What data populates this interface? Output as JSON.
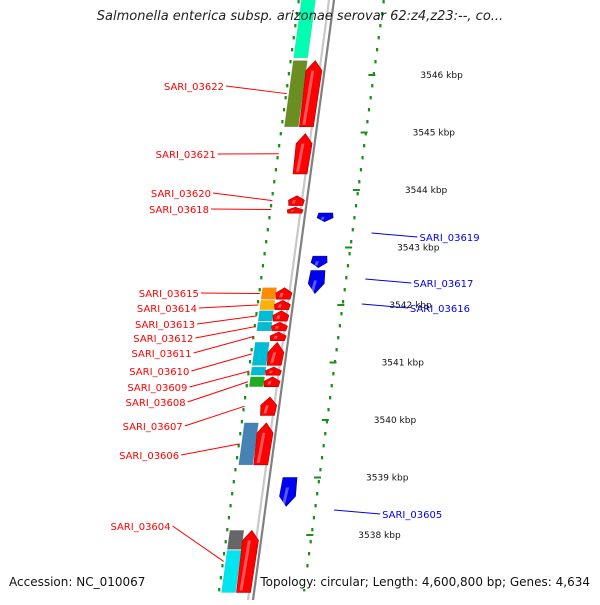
{
  "title": "Salmonella enterica subsp. arizonae serovar 62:z4,z23:--, co...",
  "accession": "Accession: NC_010067",
  "topology": "Topology: circular; Length: 4,600,800 bp; Genes: 4,634",
  "colors": {
    "forward_cds": "#ff0000",
    "reverse_cds": "#0000ee",
    "ticks": "#1a8f1a",
    "backbone": "#999999"
  },
  "axis": {
    "unit": "kbp",
    "ticks": [
      {
        "kbp": 3546,
        "label": "3546 kbp"
      },
      {
        "kbp": 3545,
        "label": "3545 kbp"
      },
      {
        "kbp": 3544,
        "label": "3544 kbp"
      },
      {
        "kbp": 3543,
        "label": "3543 kbp"
      },
      {
        "kbp": 3542,
        "label": "3542 kbp"
      },
      {
        "kbp": 3541,
        "label": "3541 kbp"
      },
      {
        "kbp": 3540,
        "label": "3540 kbp"
      },
      {
        "kbp": 3539,
        "label": "3539 kbp"
      },
      {
        "kbp": 3538,
        "label": "3538 kbp"
      }
    ]
  },
  "genes": [
    {
      "name": "SARI_03622",
      "strand": "+",
      "start_kbp": 3545.1,
      "end_kbp": 3546.25
    },
    {
      "name": "SARI_03621",
      "strand": "+",
      "start_kbp": 3544.28,
      "end_kbp": 3544.98
    },
    {
      "name": "SARI_03620",
      "strand": "+",
      "start_kbp": 3543.73,
      "end_kbp": 3543.9
    },
    {
      "name": "SARI_03618",
      "strand": "+",
      "start_kbp": 3543.62,
      "end_kbp": 3543.7
    },
    {
      "name": "SARI_03619",
      "strand": "-",
      "start_kbp": 3543.45,
      "end_kbp": 3543.6
    },
    {
      "name": "SARI_03617",
      "strand": "-",
      "start_kbp": 3542.65,
      "end_kbp": 3542.85
    },
    {
      "name": "SARI_03616",
      "strand": "-",
      "start_kbp": 3542.2,
      "end_kbp": 3542.6
    },
    {
      "name": "SARI_03615",
      "strand": "+",
      "start_kbp": 3542.1,
      "end_kbp": 3542.3
    },
    {
      "name": "SARI_03614",
      "strand": "+",
      "start_kbp": 3541.92,
      "end_kbp": 3542.08
    },
    {
      "name": "SARI_03613",
      "strand": "+",
      "start_kbp": 3541.72,
      "end_kbp": 3541.9
    },
    {
      "name": "SARI_03612",
      "strand": "+",
      "start_kbp": 3541.55,
      "end_kbp": 3541.7
    },
    {
      "name": "SARI_03611",
      "strand": "+",
      "start_kbp": 3541.38,
      "end_kbp": 3541.53
    },
    {
      "name": "SARI_03610",
      "strand": "+",
      "start_kbp": 3540.95,
      "end_kbp": 3541.35
    },
    {
      "name": "SARI_03609",
      "strand": "+",
      "start_kbp": 3540.78,
      "end_kbp": 3540.92
    },
    {
      "name": "SARI_03608",
      "strand": "+",
      "start_kbp": 3540.58,
      "end_kbp": 3540.75
    },
    {
      "name": "SARI_03607",
      "strand": "+",
      "start_kbp": 3540.08,
      "end_kbp": 3540.4
    },
    {
      "name": "SARI_03606",
      "strand": "+",
      "start_kbp": 3539.22,
      "end_kbp": 3539.95
    },
    {
      "name": "SARI_03605",
      "strand": "-",
      "start_kbp": 3538.5,
      "end_kbp": 3539.0
    },
    {
      "name": "SARI_03604",
      "strand": "+",
      "start_kbp": 3537.0,
      "end_kbp": 3538.08
    }
  ],
  "category_blocks": [
    {
      "color": "#00ffb0",
      "start_kbp": 3546.3,
      "end_kbp": 3547.4
    },
    {
      "color": "#6b8e23",
      "start_kbp": 3545.1,
      "end_kbp": 3546.25
    },
    {
      "color": "#ff8c00",
      "start_kbp": 3542.1,
      "end_kbp": 3542.3
    },
    {
      "color": "#ffb000",
      "start_kbp": 3541.92,
      "end_kbp": 3542.08
    },
    {
      "color": "#00bcd4",
      "start_kbp": 3541.72,
      "end_kbp": 3541.9
    },
    {
      "color": "#00bcd4",
      "start_kbp": 3541.55,
      "end_kbp": 3541.7
    },
    {
      "color": "#00bcd4",
      "start_kbp": 3540.95,
      "end_kbp": 3541.35
    },
    {
      "color": "#00bcd4",
      "start_kbp": 3540.78,
      "end_kbp": 3540.92
    },
    {
      "color": "#22aa22",
      "start_kbp": 3540.58,
      "end_kbp": 3540.75
    },
    {
      "color": "#4682b4",
      "start_kbp": 3539.22,
      "end_kbp": 3539.95
    },
    {
      "color": "#666666",
      "start_kbp": 3537.75,
      "end_kbp": 3538.08
    },
    {
      "color": "#00e5ee",
      "start_kbp": 3537.0,
      "end_kbp": 3537.73
    }
  ]
}
